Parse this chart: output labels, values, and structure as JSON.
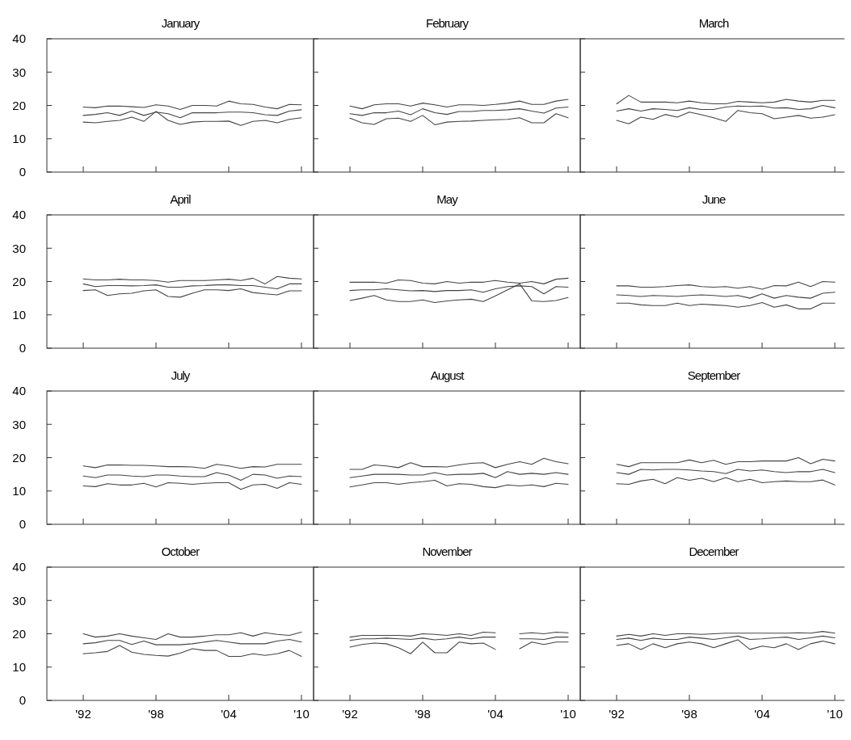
{
  "chart_data": [
    {
      "type": "line",
      "title": "January",
      "x": [
        1992,
        1993,
        1994,
        1995,
        1996,
        1997,
        1998,
        1999,
        2000,
        2001,
        2002,
        2003,
        2004,
        2005,
        2006,
        2007,
        2008,
        2009,
        2010
      ],
      "xlim": [
        1989,
        2011
      ],
      "xticks": [
        {
          "value": 1992,
          "label": null
        },
        {
          "value": 1998,
          "label": null
        },
        {
          "value": 2004,
          "label": null
        },
        {
          "value": 2010,
          "label": null
        }
      ],
      "ylim": [
        0,
        40
      ],
      "yticks": [
        0,
        10,
        20,
        30,
        40
      ],
      "tick_labels": "y",
      "series": [
        {
          "color": "#444444",
          "values": [
            19.5,
            19.3,
            19.8,
            19.8,
            19.6,
            19.4,
            20.2,
            19.8,
            18.8,
            20,
            20,
            19.8,
            21.3,
            20.5,
            20.3,
            19.5,
            19,
            20.3,
            20.2
          ]
        },
        {
          "color": "#444444",
          "values": [
            17,
            17.3,
            17.8,
            17,
            18.3,
            17,
            18,
            17.5,
            16.3,
            17.8,
            17.8,
            17.8,
            18,
            18,
            17.8,
            17.2,
            17,
            18.3,
            18.7
          ]
        },
        {
          "color": "#444444",
          "values": [
            15,
            14.8,
            15.2,
            15.5,
            16.5,
            15.2,
            18.2,
            15.5,
            14.3,
            15,
            15.2,
            15.2,
            15.3,
            14,
            15.2,
            15.5,
            14.8,
            15.8,
            16.3
          ]
        }
      ]
    },
    {
      "type": "line",
      "title": "February",
      "x": [
        1992,
        1993,
        1994,
        1995,
        1996,
        1997,
        1998,
        1999,
        2000,
        2001,
        2002,
        2003,
        2004,
        2005,
        2006,
        2007,
        2008,
        2009,
        2010
      ],
      "xlim": [
        1989,
        2011
      ],
      "xticks": [
        {
          "value": 1992,
          "label": null
        },
        {
          "value": 1998,
          "label": null
        },
        {
          "value": 2004,
          "label": null
        },
        {
          "value": 2010,
          "label": null
        }
      ],
      "ylim": [
        0,
        40
      ],
      "yticks": [
        0,
        10,
        20,
        30,
        40
      ],
      "tick_labels": false,
      "series": [
        {
          "color": "#444444",
          "values": [
            19.8,
            19,
            20.2,
            20.5,
            20.5,
            19.8,
            20.7,
            20.2,
            19.5,
            20.2,
            20.2,
            20,
            20.3,
            20.7,
            21.3,
            20.3,
            20.3,
            21.3,
            21.8
          ]
        },
        {
          "color": "#444444",
          "values": [
            17.5,
            17,
            17.8,
            17.8,
            18.3,
            17.2,
            19,
            17.8,
            17.3,
            18.2,
            18.2,
            18.5,
            18.5,
            18.7,
            19,
            18.3,
            17.7,
            19.2,
            19.5
          ]
        },
        {
          "color": "#444444",
          "values": [
            16.2,
            14.8,
            14.3,
            16,
            16.2,
            15.2,
            17,
            14.2,
            15,
            15.2,
            15.3,
            15.5,
            15.7,
            15.8,
            16.3,
            14.8,
            14.8,
            17.5,
            16.3
          ]
        }
      ]
    },
    {
      "type": "line",
      "title": "March",
      "x": [
        1992,
        1993,
        1994,
        1995,
        1996,
        1997,
        1998,
        1999,
        2000,
        2001,
        2002,
        2003,
        2004,
        2005,
        2006,
        2007,
        2008,
        2009,
        2010
      ],
      "xlim": [
        1989,
        2011
      ],
      "xticks": [
        {
          "value": 1992,
          "label": null
        },
        {
          "value": 1998,
          "label": null
        },
        {
          "value": 2004,
          "label": null
        },
        {
          "value": 2010,
          "label": null
        }
      ],
      "ylim": [
        0,
        40
      ],
      "yticks": [
        0,
        10,
        20,
        30,
        40
      ],
      "tick_labels": false,
      "series": [
        {
          "color": "#444444",
          "values": [
            20.5,
            23,
            21,
            21,
            21,
            20.8,
            21.3,
            20.8,
            20.5,
            20.5,
            21.2,
            21,
            20.8,
            21,
            21.8,
            21.3,
            21,
            21.5,
            21.5
          ]
        },
        {
          "color": "#444444",
          "values": [
            18.3,
            19,
            18.3,
            19,
            18.8,
            18.5,
            19.3,
            18.8,
            18.8,
            19.5,
            19.8,
            19.7,
            19.8,
            19.2,
            19.3,
            18.8,
            19,
            20,
            19.3
          ]
        },
        {
          "color": "#444444",
          "values": [
            15.5,
            14.5,
            16.5,
            15.8,
            17.3,
            16.5,
            18,
            17.2,
            16.3,
            15.2,
            18.5,
            17.8,
            17.5,
            16,
            16.5,
            17,
            16.2,
            16.5,
            17.2
          ]
        }
      ]
    },
    {
      "type": "line",
      "title": "April",
      "x": [
        1992,
        1993,
        1994,
        1995,
        1996,
        1997,
        1998,
        1999,
        2000,
        2001,
        2002,
        2003,
        2004,
        2005,
        2006,
        2007,
        2008,
        2009,
        2010
      ],
      "xlim": [
        1989,
        2011
      ],
      "xticks": [
        {
          "value": 1992,
          "label": null
        },
        {
          "value": 1998,
          "label": null
        },
        {
          "value": 2004,
          "label": null
        },
        {
          "value": 2010,
          "label": null
        }
      ],
      "ylim": [
        0,
        40
      ],
      "yticks": [
        0,
        10,
        20,
        30,
        40
      ],
      "tick_labels": "y",
      "series": [
        {
          "color": "#444444",
          "values": [
            20.8,
            20.5,
            20.5,
            20.7,
            20.5,
            20.5,
            20.3,
            19.8,
            20.3,
            20.3,
            20.3,
            20.5,
            20.7,
            20.3,
            21,
            19.3,
            21.5,
            21,
            20.8
          ]
        },
        {
          "color": "#444444",
          "values": [
            19.3,
            18.5,
            18.8,
            18.8,
            18.7,
            18.8,
            19,
            18.3,
            18.3,
            18.7,
            18.8,
            19,
            19,
            18.8,
            18.8,
            18.3,
            17.8,
            19.3,
            19.3
          ]
        },
        {
          "color": "#444444",
          "values": [
            17.3,
            17.5,
            15.8,
            16.3,
            16.5,
            17.2,
            17.5,
            15.5,
            15.3,
            16.5,
            17.5,
            17.5,
            17.3,
            17.8,
            16.7,
            16.3,
            16,
            17.2,
            17.2
          ]
        }
      ]
    },
    {
      "type": "line",
      "title": "May",
      "x": [
        1992,
        1993,
        1994,
        1995,
        1996,
        1997,
        1998,
        1999,
        2000,
        2001,
        2002,
        2003,
        2004,
        2005,
        2006,
        2007,
        2008,
        2009,
        2010
      ],
      "xlim": [
        1989,
        2011
      ],
      "xticks": [
        {
          "value": 1992,
          "label": null
        },
        {
          "value": 1998,
          "label": null
        },
        {
          "value": 2004,
          "label": null
        },
        {
          "value": 2010,
          "label": null
        }
      ],
      "ylim": [
        0,
        40
      ],
      "yticks": [
        0,
        10,
        20,
        30,
        40
      ],
      "tick_labels": false,
      "series": [
        {
          "color": "#444444",
          "values": [
            19.8,
            19.8,
            19.8,
            19.5,
            20.5,
            20.3,
            19.5,
            19.3,
            20,
            19.5,
            19.8,
            19.8,
            20.3,
            19.8,
            19.5,
            20,
            19.3,
            20.7,
            21
          ]
        },
        {
          "color": "#444444",
          "values": [
            17.3,
            17.5,
            17.5,
            17.8,
            17.5,
            17.2,
            17.3,
            17,
            17.3,
            17.3,
            17.5,
            16.8,
            17.8,
            18.5,
            18.7,
            18.5,
            16.3,
            18.5,
            18.3
          ]
        },
        {
          "color": "#444444",
          "values": [
            14.3,
            15,
            15.8,
            14.5,
            14,
            14,
            14.5,
            13.7,
            14.2,
            14.5,
            14.7,
            14,
            15.7,
            17.5,
            19.3,
            14.2,
            14,
            14.3,
            15.2
          ]
        }
      ]
    },
    {
      "type": "line",
      "title": "June",
      "x": [
        1992,
        1993,
        1994,
        1995,
        1996,
        1997,
        1998,
        1999,
        2000,
        2001,
        2002,
        2003,
        2004,
        2005,
        2006,
        2007,
        2008,
        2009,
        2010
      ],
      "xlim": [
        1989,
        2011
      ],
      "xticks": [
        {
          "value": 1992,
          "label": null
        },
        {
          "value": 1998,
          "label": null
        },
        {
          "value": 2004,
          "label": null
        },
        {
          "value": 2010,
          "label": null
        }
      ],
      "ylim": [
        0,
        40
      ],
      "yticks": [
        0,
        10,
        20,
        30,
        40
      ],
      "tick_labels": false,
      "series": [
        {
          "color": "#444444",
          "values": [
            18.7,
            18.7,
            18.3,
            18.3,
            18.5,
            18.8,
            19,
            18.5,
            18.3,
            18.5,
            18,
            18.5,
            17.7,
            18.8,
            18.7,
            19.8,
            18.5,
            20,
            19.8
          ]
        },
        {
          "color": "#444444",
          "values": [
            16,
            15.8,
            15.5,
            15.8,
            15.7,
            15.5,
            15.8,
            16,
            15.8,
            15.5,
            15.8,
            15,
            16.3,
            15,
            15.8,
            15.3,
            15,
            16.5,
            16.8
          ]
        },
        {
          "color": "#444444",
          "values": [
            13.5,
            13.5,
            13,
            12.8,
            12.8,
            13.5,
            12.8,
            13.2,
            13,
            12.8,
            12.3,
            12.8,
            13.7,
            12.3,
            13,
            11.8,
            11.8,
            13.5,
            13.5
          ]
        }
      ]
    },
    {
      "type": "line",
      "title": "July",
      "x": [
        1992,
        1993,
        1994,
        1995,
        1996,
        1997,
        1998,
        1999,
        2000,
        2001,
        2002,
        2003,
        2004,
        2005,
        2006,
        2007,
        2008,
        2009,
        2010
      ],
      "xlim": [
        1989,
        2011
      ],
      "xticks": [
        {
          "value": 1992,
          "label": null
        },
        {
          "value": 1998,
          "label": null
        },
        {
          "value": 2004,
          "label": null
        },
        {
          "value": 2010,
          "label": null
        }
      ],
      "ylim": [
        0,
        40
      ],
      "yticks": [
        0,
        10,
        20,
        30,
        40
      ],
      "tick_labels": "y",
      "series": [
        {
          "color": "#444444",
          "values": [
            17.5,
            17,
            17.8,
            17.8,
            17.7,
            17.7,
            17.5,
            17.3,
            17.3,
            17.2,
            16.8,
            18,
            17.5,
            16.8,
            17.3,
            17.2,
            18,
            18,
            18
          ]
        },
        {
          "color": "#444444",
          "values": [
            14.5,
            14,
            14.8,
            14.8,
            14.5,
            14.3,
            14.8,
            14.8,
            14.5,
            14.3,
            14.3,
            15.5,
            14.8,
            13.2,
            15,
            14.8,
            13.8,
            14.5,
            14.3
          ]
        },
        {
          "color": "#444444",
          "values": [
            11.5,
            11.3,
            12.2,
            11.8,
            11.8,
            12.3,
            11.2,
            12.5,
            12.3,
            12,
            12.3,
            12.5,
            12.5,
            10.5,
            11.8,
            12,
            10.8,
            12.5,
            12
          ]
        }
      ]
    },
    {
      "type": "line",
      "title": "August",
      "x": [
        1992,
        1993,
        1994,
        1995,
        1996,
        1997,
        1998,
        1999,
        2000,
        2001,
        2002,
        2003,
        2004,
        2005,
        2006,
        2007,
        2008,
        2009,
        2010
      ],
      "xlim": [
        1989,
        2011
      ],
      "xticks": [
        {
          "value": 1992,
          "label": null
        },
        {
          "value": 1998,
          "label": null
        },
        {
          "value": 2004,
          "label": null
        },
        {
          "value": 2010,
          "label": null
        }
      ],
      "ylim": [
        0,
        40
      ],
      "yticks": [
        0,
        10,
        20,
        30,
        40
      ],
      "tick_labels": false,
      "series": [
        {
          "color": "#444444",
          "values": [
            16.5,
            16.5,
            17.8,
            17.5,
            17,
            18.5,
            17.3,
            17.3,
            17.2,
            17.8,
            18.3,
            18.5,
            17,
            18,
            18.8,
            18,
            19.8,
            18.8,
            18.2
          ]
        },
        {
          "color": "#444444",
          "values": [
            14,
            14.5,
            15,
            15,
            15,
            14.8,
            14.8,
            15.5,
            14.8,
            15,
            15,
            15.3,
            14,
            15.8,
            15,
            15.3,
            15,
            15.5,
            15
          ]
        },
        {
          "color": "#444444",
          "values": [
            11.2,
            11.8,
            12.5,
            12.5,
            12,
            12.5,
            12.8,
            13.2,
            11.5,
            12.2,
            12,
            11.3,
            11,
            11.8,
            11.5,
            11.8,
            11.3,
            12.3,
            12
          ]
        }
      ]
    },
    {
      "type": "line",
      "title": "September",
      "x": [
        1992,
        1993,
        1994,
        1995,
        1996,
        1997,
        1998,
        1999,
        2000,
        2001,
        2002,
        2003,
        2004,
        2005,
        2006,
        2007,
        2008,
        2009,
        2010
      ],
      "xlim": [
        1989,
        2011
      ],
      "xticks": [
        {
          "value": 1992,
          "label": null
        },
        {
          "value": 1998,
          "label": null
        },
        {
          "value": 2004,
          "label": null
        },
        {
          "value": 2010,
          "label": null
        }
      ],
      "ylim": [
        0,
        40
      ],
      "yticks": [
        0,
        10,
        20,
        30,
        40
      ],
      "tick_labels": false,
      "series": [
        {
          "color": "#444444",
          "values": [
            18,
            17.3,
            18.5,
            18.5,
            18.5,
            18.5,
            19.3,
            18.5,
            19.2,
            18,
            18.8,
            18.8,
            19,
            19,
            19,
            20,
            18.2,
            19.5,
            19
          ]
        },
        {
          "color": "#444444",
          "values": [
            15.5,
            15,
            16.5,
            16.3,
            16.5,
            16.5,
            16.3,
            16,
            15.8,
            15.2,
            16.5,
            16,
            16.3,
            15.8,
            15.5,
            15.8,
            15.8,
            16.5,
            15.5
          ]
        },
        {
          "color": "#444444",
          "values": [
            12.2,
            12,
            13,
            13.5,
            12.2,
            14,
            13.2,
            13.8,
            12.8,
            14,
            12.8,
            13.5,
            12.5,
            12.8,
            13,
            12.8,
            12.8,
            13.3,
            11.8
          ]
        }
      ]
    },
    {
      "type": "line",
      "title": "October",
      "x": [
        1992,
        1993,
        1994,
        1995,
        1996,
        1997,
        1998,
        1999,
        2000,
        2001,
        2002,
        2003,
        2004,
        2005,
        2006,
        2007,
        2008,
        2009,
        2010
      ],
      "xlim": [
        1989,
        2011
      ],
      "xticks": [
        {
          "value": 1992,
          "label": "'92"
        },
        {
          "value": 1998,
          "label": "'98"
        },
        {
          "value": 2004,
          "label": "'04"
        },
        {
          "value": 2010,
          "label": "'10"
        }
      ],
      "ylim": [
        0,
        40
      ],
      "yticks": [
        0,
        10,
        20,
        30,
        40
      ],
      "series": [
        {
          "color": "#444444",
          "values": [
            20,
            19,
            19.3,
            20,
            19.3,
            18.8,
            18.3,
            20,
            19,
            19,
            19.3,
            19.7,
            19.7,
            20.3,
            19.3,
            20.3,
            19.8,
            19.5,
            20.5
          ]
        },
        {
          "color": "#444444",
          "values": [
            17,
            17.3,
            18,
            18,
            16.8,
            17.8,
            16.7,
            16.7,
            16.7,
            17,
            17.5,
            18,
            17.5,
            17,
            17,
            17,
            17.8,
            18.3,
            17.5
          ]
        },
        {
          "color": "#444444",
          "values": [
            14,
            14.3,
            14.7,
            16.5,
            14.5,
            13.8,
            13.5,
            13.3,
            14.2,
            15.5,
            15,
            15,
            13.2,
            13.2,
            14,
            13.5,
            14,
            15,
            13.2
          ]
        }
      ]
    },
    {
      "type": "line",
      "title": "November",
      "x": [
        1992,
        1993,
        1994,
        1995,
        1996,
        1997,
        1998,
        1999,
        2000,
        2001,
        2002,
        2003,
        2004,
        2005,
        2006,
        2007,
        2008,
        2009,
        2010
      ],
      "xlim": [
        1989,
        2011
      ],
      "xticks": [
        {
          "value": 1992,
          "label": "'92"
        },
        {
          "value": 1998,
          "label": "'98"
        },
        {
          "value": 2004,
          "label": "'04"
        },
        {
          "value": 2010,
          "label": "'10"
        }
      ],
      "ylim": [
        0,
        40
      ],
      "yticks": [
        0,
        10,
        20,
        30,
        40
      ],
      "tick_labels": "x",
      "series": [
        {
          "color": "#444444",
          "values": [
            19,
            19.5,
            19.5,
            19.5,
            19.5,
            19.3,
            20,
            19.8,
            19.5,
            20,
            19.5,
            20.5,
            20.3,
            null,
            20,
            20.3,
            20,
            20.5,
            20.3
          ]
        },
        {
          "color": "#444444",
          "values": [
            18,
            18.5,
            18.5,
            18.7,
            18.5,
            18.3,
            18.7,
            18.2,
            18.5,
            19,
            18.5,
            19,
            19,
            null,
            18.5,
            18.5,
            18.3,
            19,
            19
          ]
        },
        {
          "color": "#444444",
          "values": [
            16,
            16.8,
            17.2,
            17,
            15.8,
            14,
            17.5,
            14.3,
            14.3,
            17.5,
            17,
            17.2,
            15.3,
            null,
            15.5,
            17.5,
            16.8,
            17.5,
            17.5
          ]
        }
      ]
    },
    {
      "type": "line",
      "title": "December",
      "x": [
        1992,
        1993,
        1994,
        1995,
        1996,
        1997,
        1998,
        1999,
        2000,
        2001,
        2002,
        2003,
        2004,
        2005,
        2006,
        2007,
        2008,
        2009,
        2010
      ],
      "xlim": [
        1989,
        2011
      ],
      "xticks": [
        {
          "value": 1992,
          "label": "'92"
        },
        {
          "value": 1998,
          "label": "'98"
        },
        {
          "value": 2004,
          "label": "'04"
        },
        {
          "value": 2010,
          "label": "'10"
        }
      ],
      "ylim": [
        0,
        40
      ],
      "yticks": [
        0,
        10,
        20,
        30,
        40
      ],
      "tick_labels": "x",
      "series": [
        {
          "color": "#444444",
          "values": [
            19.3,
            19.8,
            19.3,
            20,
            19.5,
            20,
            20,
            19.8,
            20,
            20.2,
            20.2,
            20.2,
            20.2,
            20.2,
            20.2,
            20.3,
            20.2,
            20.7,
            20.2
          ]
        },
        {
          "color": "#444444",
          "values": [
            18.3,
            18.7,
            18,
            18.7,
            18.3,
            18.3,
            19,
            18.7,
            18.3,
            18.8,
            19.3,
            18.3,
            18.5,
            18.8,
            19,
            18.3,
            18.8,
            19.3,
            18.8
          ]
        },
        {
          "color": "#444444",
          "values": [
            16.5,
            17,
            15.3,
            17,
            15.8,
            17,
            17.5,
            17,
            15.8,
            17,
            18.2,
            15.3,
            16.3,
            15.8,
            17,
            15.3,
            17,
            17.8,
            17
          ]
        }
      ]
    }
  ]
}
